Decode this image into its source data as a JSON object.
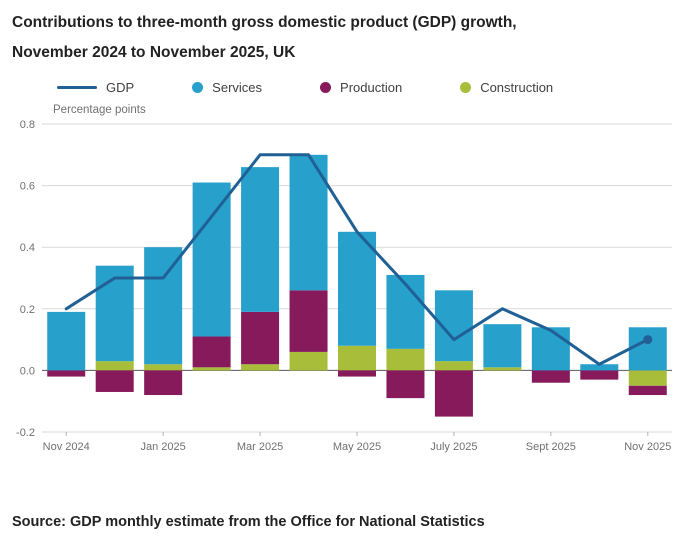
{
  "header": {
    "title_line1": "Contributions to three-month gross domestic product (GDP) growth,",
    "title_line2": "November 2024 to November 2025, UK"
  },
  "legend": [
    {
      "label": "GDP",
      "symbol": "line",
      "color": "#206095"
    },
    {
      "label": "Services",
      "symbol": "dot",
      "color": "#27A0CC"
    },
    {
      "label": "Production",
      "symbol": "dot",
      "color": "#871A5B"
    },
    {
      "label": "Construction",
      "symbol": "dot",
      "color": "#A8BD3A"
    }
  ],
  "chart_data": {
    "type": "bar",
    "subtype": "stacked-bars-with-line-overlay",
    "unit_label": "Percentage points",
    "months": [
      "Nov 2024",
      "Dec 2024",
      "Jan 2025",
      "Feb 2025",
      "Mar 2025",
      "Apr 2025",
      "May 2025",
      "Jun 2025",
      "Jul 2025",
      "Aug 2025",
      "Sep 2025",
      "Oct 2025",
      "Nov 2025"
    ],
    "x_ticks_index": [
      0,
      2,
      4,
      6,
      8,
      10,
      12
    ],
    "x_tick_labels": [
      "Nov 2024",
      "Jan 2025",
      "Mar 2025",
      "May 2025",
      "July 2025",
      "Sept 2025",
      "Nov 2025"
    ],
    "stack_order": [
      "Construction",
      "Production",
      "Services"
    ],
    "series": [
      {
        "name": "Services",
        "color": "#27A0CC",
        "values": [
          0.19,
          0.31,
          0.38,
          0.5,
          0.47,
          0.44,
          0.37,
          0.24,
          0.23,
          0.14,
          0.14,
          0.02,
          0.14
        ]
      },
      {
        "name": "Production",
        "color": "#871A5B",
        "values": [
          -0.02,
          -0.07,
          -0.08,
          0.1,
          0.17,
          0.2,
          -0.02,
          -0.09,
          -0.15,
          0.0,
          -0.04,
          -0.03,
          -0.03
        ]
      },
      {
        "name": "Construction",
        "color": "#A8BD3A",
        "values": [
          0.0,
          0.03,
          0.02,
          0.01,
          0.02,
          0.06,
          0.08,
          0.07,
          0.03,
          0.01,
          0.0,
          0.0,
          -0.05
        ]
      }
    ],
    "line": {
      "name": "GDP",
      "color": "#206095",
      "values": [
        0.2,
        0.3,
        0.3,
        0.5,
        0.7,
        0.7,
        0.45,
        0.28,
        0.1,
        0.2,
        0.13,
        0.02,
        0.1
      ]
    },
    "ylim": [
      -0.2,
      0.8
    ],
    "yticks": [
      0.8,
      0.6,
      0.4,
      0.2,
      0.0,
      -0.2
    ],
    "grid_color": "#d9d9d9",
    "zero_line_color": "#58585a",
    "axis_text_color": "#707071"
  },
  "footer": {
    "source": "Source: GDP monthly estimate from the Office for National Statistics"
  }
}
